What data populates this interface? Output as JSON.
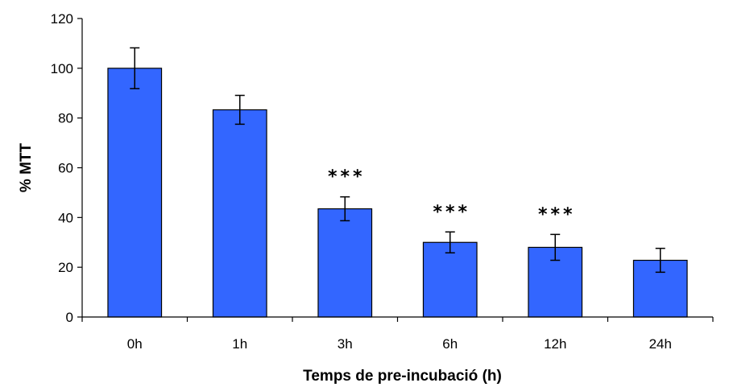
{
  "chart_data": {
    "type": "bar",
    "categories": [
      "0h",
      "1h",
      "3h",
      "6h",
      "12h",
      "24h"
    ],
    "values": [
      100,
      83.3,
      43.5,
      30,
      28,
      22.8
    ],
    "errors": [
      8.2,
      5.8,
      4.8,
      4.2,
      5.2,
      4.8
    ],
    "significance": [
      "",
      "",
      "***",
      "***",
      "***",
      ""
    ],
    "title": "",
    "xlabel": "Temps de pre-incubació  (h)",
    "ylabel": "% MTT",
    "ylim": [
      0,
      120
    ],
    "yticks": [
      0,
      20,
      40,
      60,
      80,
      100,
      120
    ],
    "bar_color": "#3366ff",
    "grid": false,
    "legend": "none"
  }
}
